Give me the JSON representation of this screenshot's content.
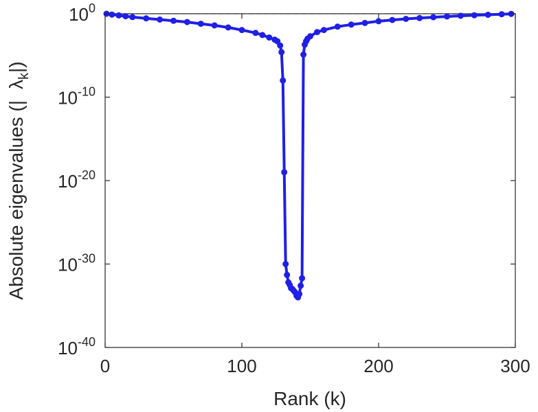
{
  "chart_data": {
    "type": "line",
    "xlabel": "Rank (k)",
    "ylabel": {
      "prefix": "Absolute eigenvalues (|",
      "symbol": "λ",
      "subscript": "k",
      "suffix": "|)"
    },
    "xlim": [
      0,
      300
    ],
    "ylim_log10": [
      -40,
      0
    ],
    "yscale": "log",
    "grid": false,
    "x_ticks": [
      {
        "value": 0,
        "label": "0"
      },
      {
        "value": 100,
        "label": "100"
      },
      {
        "value": 200,
        "label": "200"
      },
      {
        "value": 300,
        "label": "300"
      }
    ],
    "y_ticks": [
      {
        "log10": 0,
        "base": "10",
        "exp": "0"
      },
      {
        "log10": -10,
        "base": "10",
        "exp": "-10"
      },
      {
        "log10": -20,
        "base": "10",
        "exp": "-20"
      },
      {
        "log10": -30,
        "base": "10",
        "exp": "-30"
      },
      {
        "log10": -40,
        "base": "10",
        "exp": "-40"
      }
    ],
    "reference_line": {
      "log10": 0,
      "style": "dashed"
    },
    "series": [
      {
        "color": "#1f1fe6",
        "x": [
          1,
          5,
          10,
          15,
          20,
          30,
          40,
          50,
          60,
          70,
          80,
          90,
          100,
          110,
          115,
          120,
          124,
          126,
          128,
          129,
          130,
          131,
          132,
          133,
          134,
          135,
          136,
          137,
          138,
          139,
          140,
          141,
          142,
          143,
          144,
          145,
          146,
          147,
          148,
          150,
          155,
          160,
          170,
          180,
          190,
          200,
          210,
          220,
          230,
          240,
          250,
          260,
          270,
          280,
          290,
          297
        ],
        "log10_y": [
          0.0,
          -0.1,
          -0.2,
          -0.3,
          -0.4,
          -0.55,
          -0.7,
          -0.85,
          -1.0,
          -1.2,
          -1.4,
          -1.65,
          -1.95,
          -2.3,
          -2.55,
          -2.85,
          -3.1,
          -3.3,
          -3.8,
          -4.6,
          -8.0,
          -19.0,
          -30.0,
          -31.3,
          -32.2,
          -32.5,
          -32.9,
          -33.0,
          -33.2,
          -33.4,
          -33.8,
          -34.0,
          -33.6,
          -32.6,
          -31.7,
          -4.9,
          -3.7,
          -3.3,
          -3.0,
          -2.7,
          -2.2,
          -1.95,
          -1.55,
          -1.3,
          -1.1,
          -0.9,
          -0.75,
          -0.62,
          -0.52,
          -0.42,
          -0.33,
          -0.25,
          -0.18,
          -0.12,
          -0.06,
          -0.02
        ],
        "markers": true
      }
    ]
  }
}
